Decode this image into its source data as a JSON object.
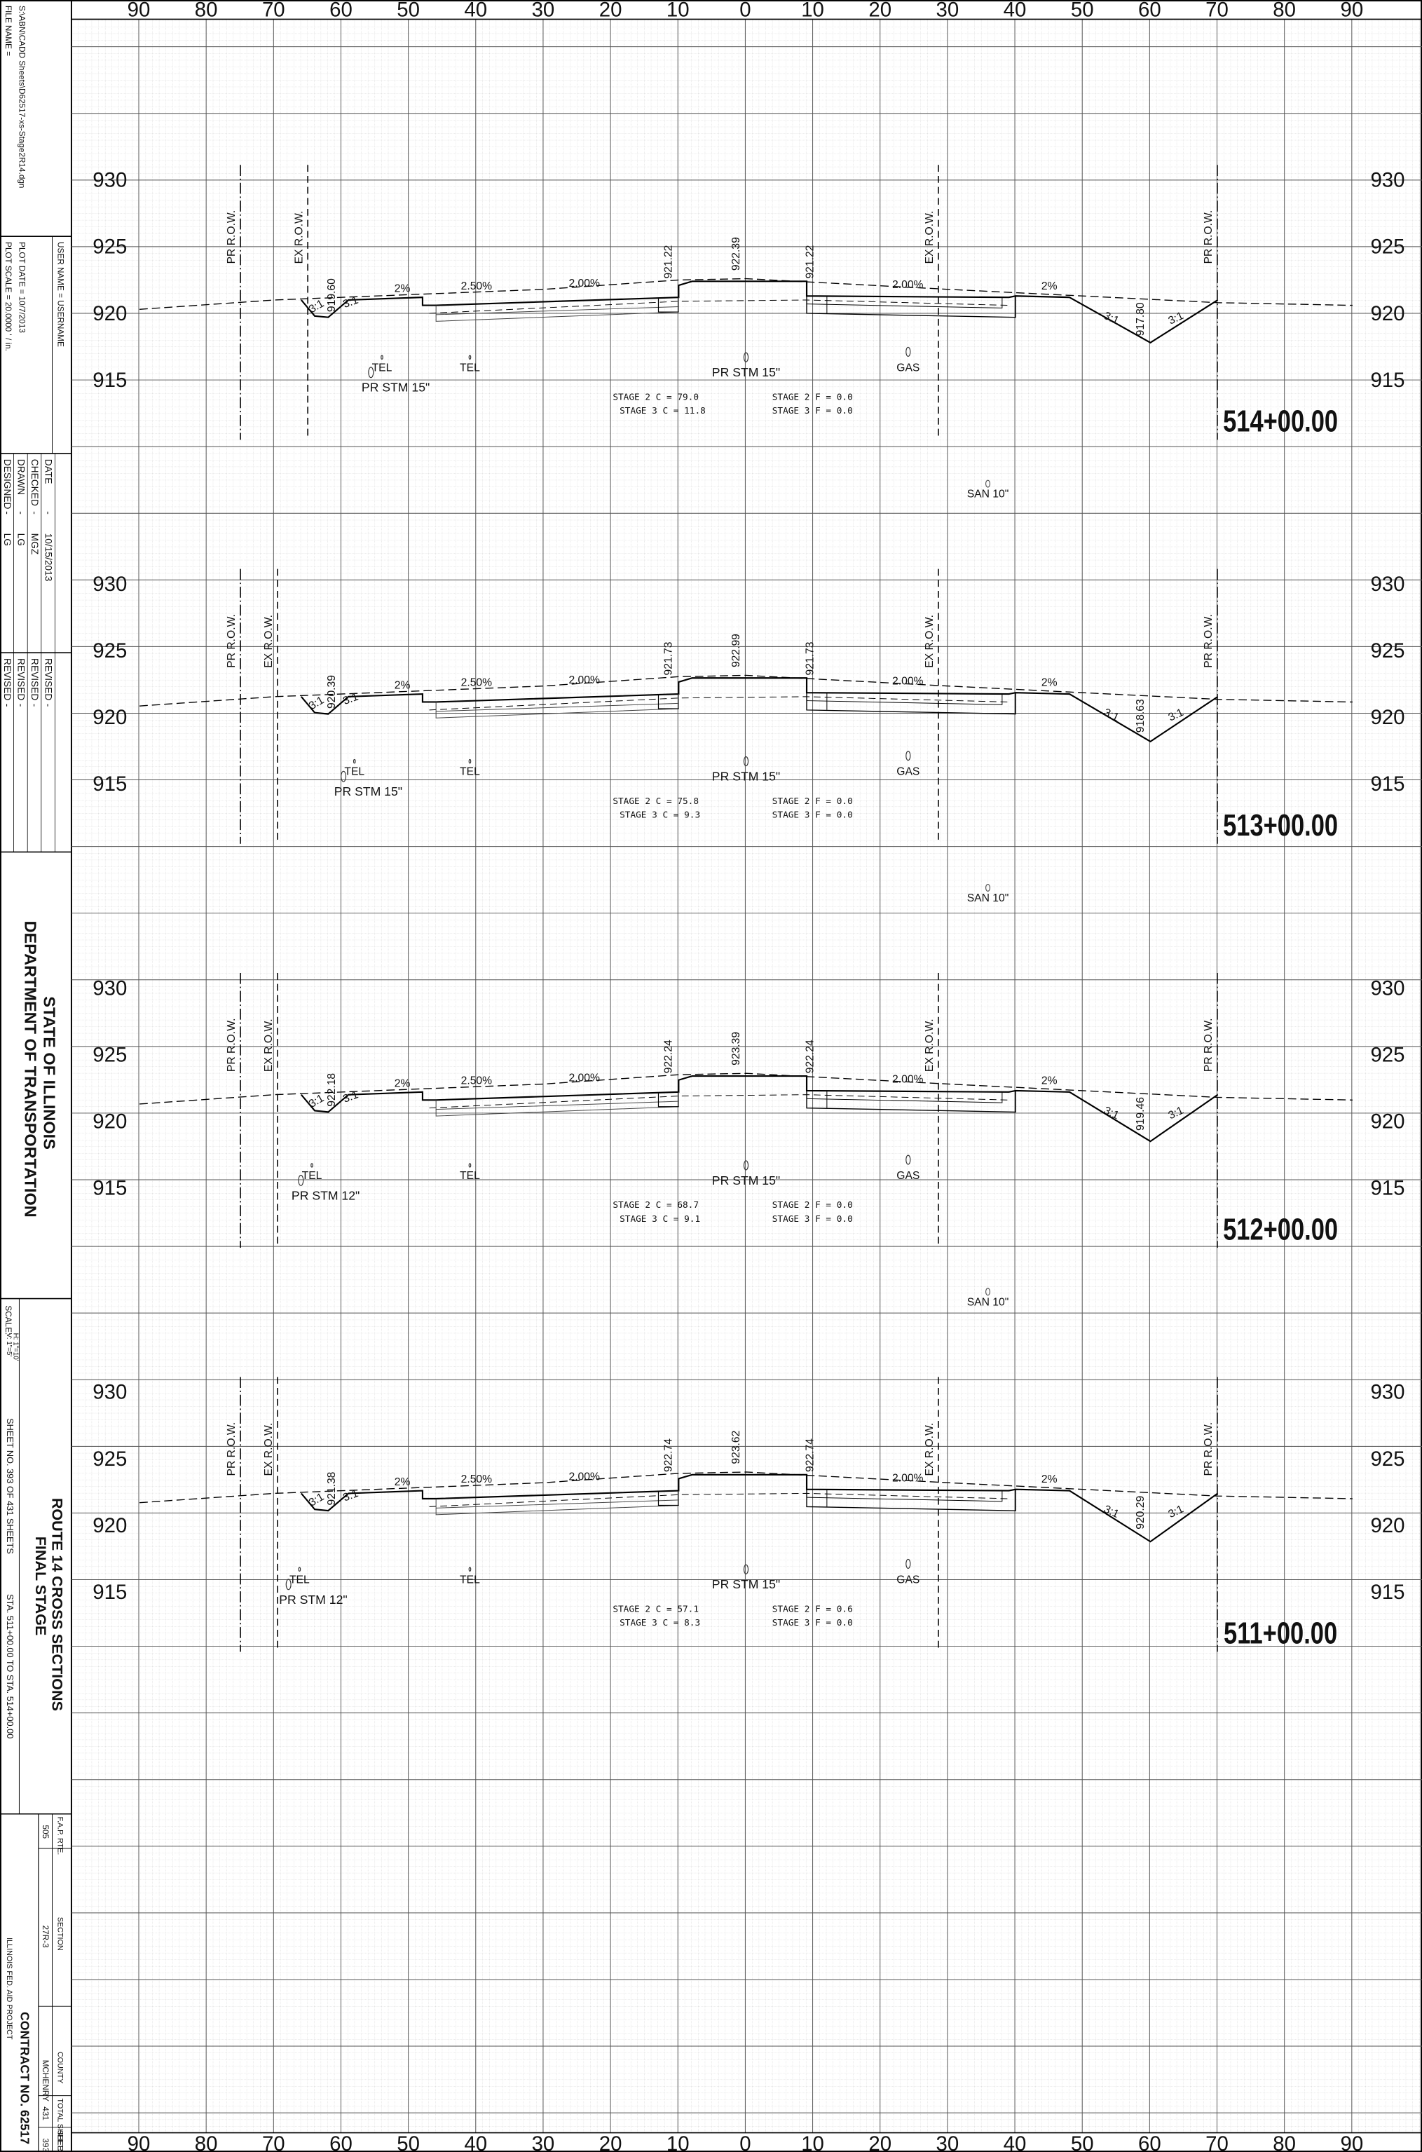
{
  "scale_top": [
    "90",
    "80",
    "70",
    "60",
    "50",
    "40",
    "30",
    "20",
    "10",
    "0",
    "10",
    "20",
    "30",
    "40",
    "50",
    "60",
    "70",
    "80",
    "90"
  ],
  "scale_bottom": [
    "90",
    "80",
    "70",
    "60",
    "50",
    "40",
    "30",
    "20",
    "10",
    "0",
    "10",
    "20",
    "30",
    "40",
    "50",
    "60",
    "70",
    "80",
    "90"
  ],
  "sections": [
    {
      "station": "514+00.00",
      "elevations": [
        "930",
        "925",
        "920",
        "915"
      ],
      "row": [
        "PR R.O.W.",
        "EX R.O.W.",
        "EX R.O.W.",
        "PR R.O.W."
      ],
      "slopes": [
        "3:1",
        "3:1",
        "2%",
        "2.50%",
        "2.00%",
        "2.00%",
        "2%",
        "3:1",
        "3:1"
      ],
      "spot_elevations": [
        "919.60",
        "921.22",
        "922.39",
        "921.22",
        "917.80"
      ],
      "utilities": [
        "TEL",
        "TEL",
        "PR STM 15\"",
        "PR STM 15\"",
        "GAS"
      ],
      "quantities": [
        "STAGE 2 C = 79.0",
        "STAGE 3 C = 11.8",
        "STAGE 2 F = 0.0",
        "STAGE 3 F = 0.0"
      ]
    },
    {
      "station": "513+00.00",
      "elevations": [
        "930",
        "925",
        "920",
        "915"
      ],
      "row": [
        "PR R.O.W.",
        "EX R.O.W.",
        "EX R.O.W.",
        "PR R.O.W."
      ],
      "slopes": [
        "3:1",
        "3:1",
        "2%",
        "2.50%",
        "2.00%",
        "2.00%",
        "2%",
        "3:1",
        "3:1"
      ],
      "spot_elevations": [
        "920.39",
        "921.73",
        "922.99",
        "921.73",
        "918.63"
      ],
      "utilities": [
        "TEL",
        "TEL",
        "PR STM 15\"",
        "PR STM 15\"",
        "GAS"
      ],
      "san": "SAN 10\"",
      "quantities": [
        "STAGE 2 C = 75.8",
        "STAGE 3 C = 9.3",
        "STAGE 2 F = 0.0",
        "STAGE 3 F = 0.0"
      ]
    },
    {
      "station": "512+00.00",
      "elevations": [
        "930",
        "925",
        "920",
        "915"
      ],
      "row": [
        "PR R.O.W.",
        "EX R.O.W.",
        "EX R.O.W.",
        "PR R.O.W."
      ],
      "slopes": [
        "3:1",
        "3:1",
        "2%",
        "2.50%",
        "2.00%",
        "2.00%",
        "2%",
        "3:1",
        "3:1"
      ],
      "spot_elevations": [
        "922.18",
        "922.24",
        "923.39",
        "922.24",
        "919.46"
      ],
      "utilities": [
        "TEL",
        "TEL",
        "PR STM 12\"",
        "PR STM 15\"",
        "GAS"
      ],
      "san": "SAN 10\"",
      "quantities": [
        "STAGE 2 C = 68.7",
        "STAGE 3 C = 9.1",
        "STAGE 2 F = 0.0",
        "STAGE 3 F = 0.0"
      ]
    },
    {
      "station": "511+00.00",
      "elevations": [
        "930",
        "925",
        "920",
        "915"
      ],
      "row": [
        "PR R.O.W.",
        "EX R.O.W.",
        "EX R.O.W.",
        "PR R.O.W."
      ],
      "slopes": [
        "3:1",
        "3:1",
        "2%",
        "2.50%",
        "2.00%",
        "2.00%",
        "2%",
        "3:1",
        "3:1"
      ],
      "spot_elevations": [
        "921.38",
        "922.74",
        "923.62",
        "922.74",
        "920.29"
      ],
      "utilities": [
        "TEL",
        "TEL",
        "PR STM 12\"",
        "PR STM 15\"",
        "GAS"
      ],
      "san": "SAN 10\"",
      "quantities": [
        "STAGE 2 C = 57.1",
        "STAGE 3 C = 8.3",
        "STAGE 2 F = 0.6",
        "STAGE 3 F = 0.0"
      ]
    }
  ],
  "title_block": {
    "file_name": "FILE NAME =",
    "file_path": "S:\\ABN\\CADD Sheets\\D62517-xs-Stage2R14.dgn",
    "user_name": "USER NAME = USERNAME",
    "plot_scale": "PLOT SCALE = 20.0000 ' / in.",
    "plot_date": "PLOT DATE = 10/7/2013",
    "signoffs": [
      [
        "DESIGNED",
        "-",
        "LG"
      ],
      [
        "DRAWN",
        "-",
        "LG"
      ],
      [
        "CHECKED",
        "-",
        "MGZ"
      ],
      [
        "DATE",
        "-",
        "10/15/2013"
      ]
    ],
    "revisions": [
      [
        "REVISED",
        "-"
      ],
      [
        "REVISED",
        "-"
      ],
      [
        "REVISED",
        "-"
      ],
      [
        "REVISED",
        "-"
      ]
    ],
    "agency": [
      "STATE OF ILLINOIS",
      "DEPARTMENT OF TRANSPORTATION"
    ],
    "sheet_title": [
      "ROUTE 14 CROSS SECTIONS",
      "FINAL STAGE"
    ],
    "scale": [
      "SCALE:",
      "H: 1\"=10'",
      "V: 1\"=5'"
    ],
    "sheet_no": "SHEET NO. 393 OF 431 SHEETS",
    "stations": "STA. 511+00.00 TO STA. 514+00.00",
    "project_table": {
      "headers": [
        "F.A.P. RTE.",
        "SECTION",
        "COUNTY",
        "TOTAL SHEETS",
        "SHEET NO."
      ],
      "values": [
        "505",
        "27R-3",
        "MCHENRY",
        "431",
        "393"
      ]
    },
    "fed_aid": "ILLINOIS FED. AID PROJECT",
    "contract": "CONTRACT NO. 62517"
  }
}
